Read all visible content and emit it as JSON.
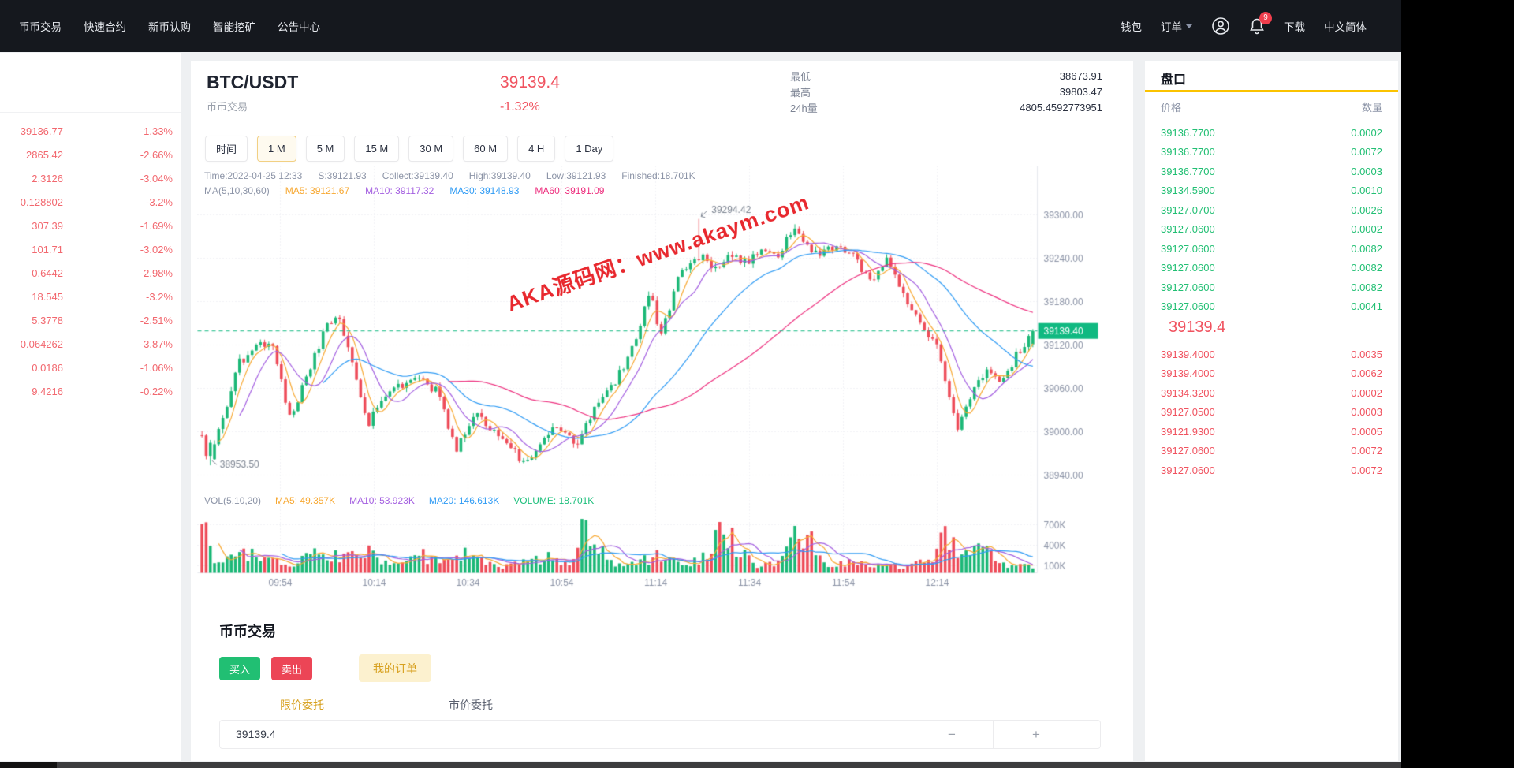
{
  "nav": {
    "left_items": [
      "币币交易",
      "快速合约",
      "新币认购",
      "智能挖矿",
      "公告中心"
    ],
    "wallet": "钱包",
    "orders": "订单",
    "download": "下载",
    "language": "中文简体",
    "notification_count": "9"
  },
  "sidebar": {
    "rows": [
      {
        "price": "39136.77",
        "change": "-1.33%"
      },
      {
        "price": "2865.42",
        "change": "-2.66%"
      },
      {
        "price": "2.3126",
        "change": "-3.04%"
      },
      {
        "price": "0.128802",
        "change": "-3.2%"
      },
      {
        "price": "307.39",
        "change": "-1.69%"
      },
      {
        "price": "101.71",
        "change": "-3.02%"
      },
      {
        "price": "0.6442",
        "change": "-2.98%"
      },
      {
        "price": "18.545",
        "change": "-3.2%"
      },
      {
        "price": "5.3778",
        "change": "-2.51%"
      },
      {
        "price": "0.064262",
        "change": "-3.87%"
      },
      {
        "price": "0.0186",
        "change": "-1.06%"
      },
      {
        "price": "9.4216",
        "change": "-0.22%"
      }
    ]
  },
  "market": {
    "pair": "BTC/USDT",
    "subtitle": "币币交易",
    "price": "39139.4",
    "change": "-1.32%",
    "stats": [
      {
        "label": "最低",
        "value": "38673.91"
      },
      {
        "label": "最高",
        "value": "39803.47"
      },
      {
        "label": "24h量",
        "value": "4805.4592773951"
      }
    ]
  },
  "toolbar": {
    "time_label": "时间",
    "intervals": [
      "1 M",
      "5 M",
      "15 M",
      "30 M",
      "60 M",
      "4 H",
      "1 Day"
    ],
    "active": "1 M"
  },
  "ohlc_info": {
    "line1": [
      "Time:2022-04-25 12:33",
      "S:39121.93",
      "Collect:39139.40",
      "High:39139.40",
      "Low:39121.93",
      "Finished:18.701K"
    ],
    "line2": [
      {
        "text": "MA(5,10,30,60)",
        "cls": "c-gray"
      },
      {
        "text": "MA5: 39121.67",
        "cls": "c-ma5"
      },
      {
        "text": "MA10: 39117.32",
        "cls": "c-ma10"
      },
      {
        "text": "MA30: 39148.93",
        "cls": "c-ma30"
      },
      {
        "text": "MA60: 39191.09",
        "cls": "c-ma60"
      }
    ],
    "vol_legend": [
      {
        "text": "VOL(5,10,20)",
        "cls": "c-gray"
      },
      {
        "text": "MA5: 49.357K",
        "cls": "c-ma5"
      },
      {
        "text": "MA10: 53.923K",
        "cls": "c-ma10"
      },
      {
        "text": "MA20: 146.613K",
        "cls": "c-ma30"
      },
      {
        "text": "VOLUME: 18.701K",
        "cls": "c-volg"
      }
    ]
  },
  "watermark": "AKA源码网：www.akaym.com",
  "chart_data": {
    "type": "candlestick+volume",
    "title": "BTC/USDT 1M k-line",
    "candle_count": 200,
    "seed": 987654321,
    "y_ticks": [
      {
        "v": 39300,
        "label": "39300.00"
      },
      {
        "v": 39240,
        "label": "39240.00"
      },
      {
        "v": 39180,
        "label": "39180.00"
      },
      {
        "v": 39120,
        "label": "39120.00"
      },
      {
        "v": 39060,
        "label": "39060.00"
      },
      {
        "v": 39000,
        "label": "39000.00"
      },
      {
        "v": 38940,
        "label": "38940.00"
      }
    ],
    "vol_ticks": [
      {
        "v": 700000,
        "label": "700K"
      },
      {
        "v": 400000,
        "label": "400K"
      },
      {
        "v": 100000,
        "label": "100K"
      }
    ],
    "x_labels": [
      "09:54",
      "10:14",
      "10:34",
      "10:54",
      "11:14",
      "11:34",
      "11:54",
      "12:14"
    ],
    "current_price": {
      "value": 39139.4,
      "label": "39139.40"
    },
    "annotations": {
      "high": {
        "label": "39294.42",
        "value": 39294.42,
        "index": 119
      },
      "low": {
        "label": "38953.50",
        "value": 38953.5,
        "index": 2
      }
    },
    "price_anchors": [
      [
        0.0,
        38995
      ],
      [
        0.008,
        38953.5
      ],
      [
        0.02,
        39000
      ],
      [
        0.045,
        39095
      ],
      [
        0.07,
        39120
      ],
      [
        0.085,
        39125
      ],
      [
        0.105,
        39020
      ],
      [
        0.125,
        39070
      ],
      [
        0.15,
        39150
      ],
      [
        0.165,
        39160
      ],
      [
        0.185,
        39080
      ],
      [
        0.2,
        39012
      ],
      [
        0.225,
        39055
      ],
      [
        0.255,
        39075
      ],
      [
        0.285,
        39055
      ],
      [
        0.305,
        38975
      ],
      [
        0.33,
        39030
      ],
      [
        0.355,
        38992
      ],
      [
        0.385,
        38962
      ],
      [
        0.405,
        38975
      ],
      [
        0.425,
        39010
      ],
      [
        0.45,
        38980
      ],
      [
        0.47,
        39025
      ],
      [
        0.5,
        39075
      ],
      [
        0.52,
        39120
      ],
      [
        0.54,
        39195
      ],
      [
        0.552,
        39130
      ],
      [
        0.575,
        39220
      ],
      [
        0.6,
        39245
      ],
      [
        0.615,
        39225
      ],
      [
        0.635,
        39245
      ],
      [
        0.655,
        39235
      ],
      [
        0.675,
        39255
      ],
      [
        0.695,
        39245
      ],
      [
        0.71,
        39280
      ],
      [
        0.725,
        39260
      ],
      [
        0.745,
        39245
      ],
      [
        0.765,
        39258
      ],
      [
        0.785,
        39240
      ],
      [
        0.805,
        39210
      ],
      [
        0.825,
        39240
      ],
      [
        0.845,
        39185
      ],
      [
        0.865,
        39150
      ],
      [
        0.885,
        39115
      ],
      [
        0.9,
        39040
      ],
      [
        0.91,
        39000
      ],
      [
        0.925,
        39050
      ],
      [
        0.945,
        39085
      ],
      [
        0.96,
        39065
      ],
      [
        0.98,
        39105
      ],
      [
        1.0,
        39139.4
      ]
    ],
    "volume_anchors": [
      [
        0.0,
        690000
      ],
      [
        0.01,
        300000
      ],
      [
        0.03,
        160000
      ],
      [
        0.05,
        280000
      ],
      [
        0.08,
        240000
      ],
      [
        0.1,
        90000
      ],
      [
        0.13,
        330000
      ],
      [
        0.15,
        150000
      ],
      [
        0.17,
        300000
      ],
      [
        0.2,
        320000
      ],
      [
        0.23,
        120000
      ],
      [
        0.26,
        290000
      ],
      [
        0.3,
        180000
      ],
      [
        0.33,
        300000
      ],
      [
        0.36,
        110000
      ],
      [
        0.39,
        150000
      ],
      [
        0.42,
        240000
      ],
      [
        0.45,
        130000
      ],
      [
        0.46,
        680000
      ],
      [
        0.49,
        150000
      ],
      [
        0.52,
        120000
      ],
      [
        0.55,
        240000
      ],
      [
        0.58,
        160000
      ],
      [
        0.6,
        230000
      ],
      [
        0.63,
        640000
      ],
      [
        0.66,
        150000
      ],
      [
        0.69,
        130000
      ],
      [
        0.72,
        650000
      ],
      [
        0.75,
        110000
      ],
      [
        0.78,
        140000
      ],
      [
        0.81,
        90000
      ],
      [
        0.84,
        100000
      ],
      [
        0.87,
        150000
      ],
      [
        0.9,
        580000
      ],
      [
        0.92,
        220000
      ],
      [
        0.95,
        370000
      ],
      [
        0.97,
        130000
      ],
      [
        1.0,
        90000
      ]
    ],
    "colors": {
      "up": "#1cb877",
      "down": "#ee4d5a",
      "ma5": "#f7a832",
      "ma10": "#a35ee0",
      "ma30": "#2f9bf4",
      "ma60": "#ed2f7e",
      "grid": "#e2e5ec",
      "axis": "#e6e8ee",
      "axis_text": "#8b93a6",
      "dash_line": "#10b981",
      "tag_bg": "#10b981",
      "tag_text": "#ffffff",
      "annotation_text": "#7a828f"
    }
  },
  "trade": {
    "heading": "币币交易",
    "buy_label": "买入",
    "sell_label": "卖出",
    "my_orders_label": "我的订单",
    "tab_limit": "限价委托",
    "tab_market": "市价委托",
    "price_value": "39139.4",
    "minus_label": "−",
    "plus_label": "+"
  },
  "orderbook": {
    "title": "盘口",
    "col_price": "价格",
    "col_qty": "数量",
    "asks": [
      {
        "price": "39136.7700",
        "qty": "0.0002"
      },
      {
        "price": "39136.7700",
        "qty": "0.0072"
      },
      {
        "price": "39136.7700",
        "qty": "0.0003"
      },
      {
        "price": "39134.5900",
        "qty": "0.0010"
      },
      {
        "price": "39127.0700",
        "qty": "0.0026"
      },
      {
        "price": "39127.0600",
        "qty": "0.0002"
      },
      {
        "price": "39127.0600",
        "qty": "0.0082"
      },
      {
        "price": "39127.0600",
        "qty": "0.0082"
      },
      {
        "price": "39127.0600",
        "qty": "0.0082"
      },
      {
        "price": "39127.0600",
        "qty": "0.0041"
      }
    ],
    "current_price": "39139.4",
    "bids": [
      {
        "price": "39139.4000",
        "qty": "0.0035"
      },
      {
        "price": "39139.4000",
        "qty": "0.0062"
      },
      {
        "price": "39134.3200",
        "qty": "0.0002"
      },
      {
        "price": "39127.0500",
        "qty": "0.0003"
      },
      {
        "price": "39121.9300",
        "qty": "0.0005"
      },
      {
        "price": "39127.0600",
        "qty": "0.0072"
      },
      {
        "price": "39127.0600",
        "qty": "0.0072"
      }
    ]
  }
}
